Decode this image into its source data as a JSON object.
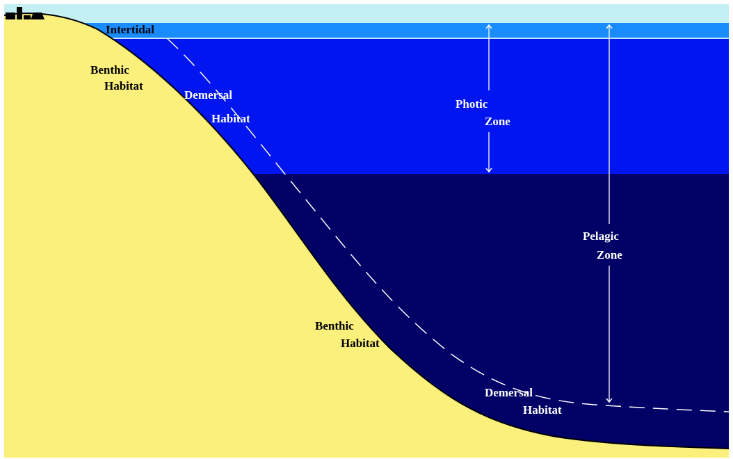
{
  "zones": {
    "intertidal": "Intertidal",
    "benthic_upper": [
      "Benthic",
      "Habitat"
    ],
    "demersal_upper": [
      "Demersal",
      "Habitat"
    ],
    "photic": [
      "Photic",
      "Zone"
    ],
    "pelagic": [
      "Pelagic",
      "Zone"
    ],
    "benthic_lower": [
      "Benthic",
      "Habitat"
    ],
    "demersal_lower": [
      "Demersal",
      "Habitat"
    ]
  }
}
